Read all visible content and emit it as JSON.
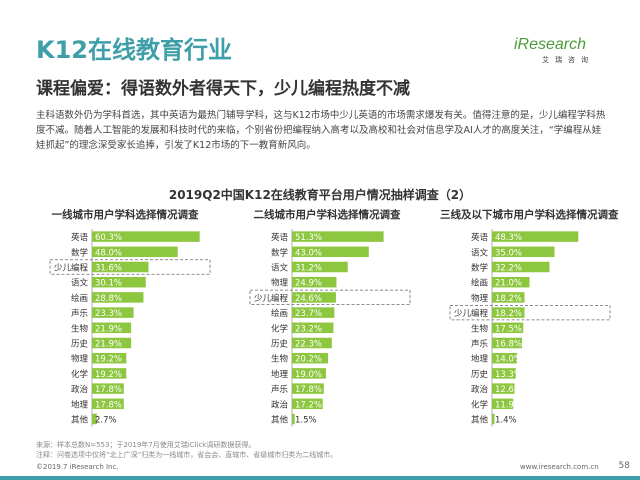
{
  "header": {
    "title": "K12在线教育行业",
    "subtitle": "课程偏爱：得语数外者得天下，少儿编程热度不减"
  },
  "logo": {
    "brand": "iResearch",
    "cn": "艾瑞咨询"
  },
  "intro": "主科语数外仍为学科首选，其中英语为最热门辅导学科，这与K12市场中少儿英语的市场需求爆发有关。值得注意的是，少儿编程学科热度不减。随着人工智能的发展和科技时代的来临，个别省份把编程纳入高考以及高校和社会对信息学及AI人才的高度关注，“学编程从娃娃抓起”的理念深受家长追捧，引发了K12市场的下一教育新风向。",
  "chart_data": [
    {
      "type": "bar",
      "orientation": "horizontal",
      "figure_title": "2019Q2中国K12在线教育平台用户情况抽样调查（2）",
      "title": "一线城市用户学科选择情况调查",
      "categories": [
        "英语",
        "数学",
        "少儿编程",
        "语文",
        "绘画",
        "声乐",
        "生物",
        "历史",
        "物理",
        "化学",
        "政治",
        "地理",
        "其他"
      ],
      "values": [
        60.3,
        48.0,
        31.6,
        30.1,
        28.8,
        23.3,
        21.9,
        21.9,
        19.2,
        19.2,
        17.8,
        17.8,
        2.7
      ],
      "labels": [
        "60.3%",
        "48.0%",
        "31.6%",
        "30.1%",
        "28.8%",
        "23.3%",
        "21.9%",
        "21.9%",
        "19.2%",
        "19.2%",
        "17.8%",
        "17.8%",
        "2.7%"
      ],
      "highlight": "少儿编程",
      "bar_color": "#8dc63f",
      "xlim": [
        0,
        70
      ]
    },
    {
      "type": "bar",
      "orientation": "horizontal",
      "title": "二线城市用户学科选择情况调查",
      "categories": [
        "英语",
        "数学",
        "语文",
        "物理",
        "少儿编程",
        "绘画",
        "化学",
        "历史",
        "生物",
        "地理",
        "声乐",
        "政治",
        "其他"
      ],
      "values": [
        51.3,
        43.0,
        31.2,
        24.9,
        24.6,
        23.7,
        23.2,
        22.3,
        20.2,
        19.0,
        17.8,
        17.2,
        1.5
      ],
      "labels": [
        "51.3%",
        "43.0%",
        "31.2%",
        "24.9%",
        "24.6%",
        "23.7%",
        "23.2%",
        "22.3%",
        "20.2%",
        "19.0%",
        "17.8%",
        "17.2%",
        "1.5%"
      ],
      "highlight": "少儿编程",
      "bar_color": "#8dc63f",
      "xlim": [
        0,
        70
      ]
    },
    {
      "type": "bar",
      "orientation": "horizontal",
      "title": "三线及以下城市用户学科选择情况调查",
      "categories": [
        "英语",
        "语文",
        "数学",
        "绘画",
        "物理",
        "少儿编程",
        "生物",
        "声乐",
        "地理",
        "历史",
        "政治",
        "化学",
        "其他"
      ],
      "values": [
        48.3,
        35.0,
        32.2,
        21.0,
        18.2,
        18.2,
        17.5,
        16.8,
        14.0,
        13.3,
        12.6,
        11.9,
        1.4
      ],
      "labels": [
        "48.3%",
        "35.0%",
        "32.2%",
        "21.0%",
        "18.2%",
        "18.2%",
        "17.5%",
        "16.8%",
        "14.0%",
        "13.3%",
        "12.6%",
        "11.9%",
        "1.4%"
      ],
      "highlight": "少儿编程",
      "bar_color": "#8dc63f",
      "xlim": [
        0,
        70
      ]
    }
  ],
  "source": "来源：样本总数N=553；于2019年7月使用艾瑞iClick调研数据获得。",
  "note": "注释：问卷选项中仅将“北上广深”归类为一线城市，省会会、直辖市、省级城市归类为二线城市。",
  "footer": {
    "copyright": "©2019.7 iResearch Inc.",
    "site": "www.iresearch.com.cn",
    "page": "58"
  }
}
